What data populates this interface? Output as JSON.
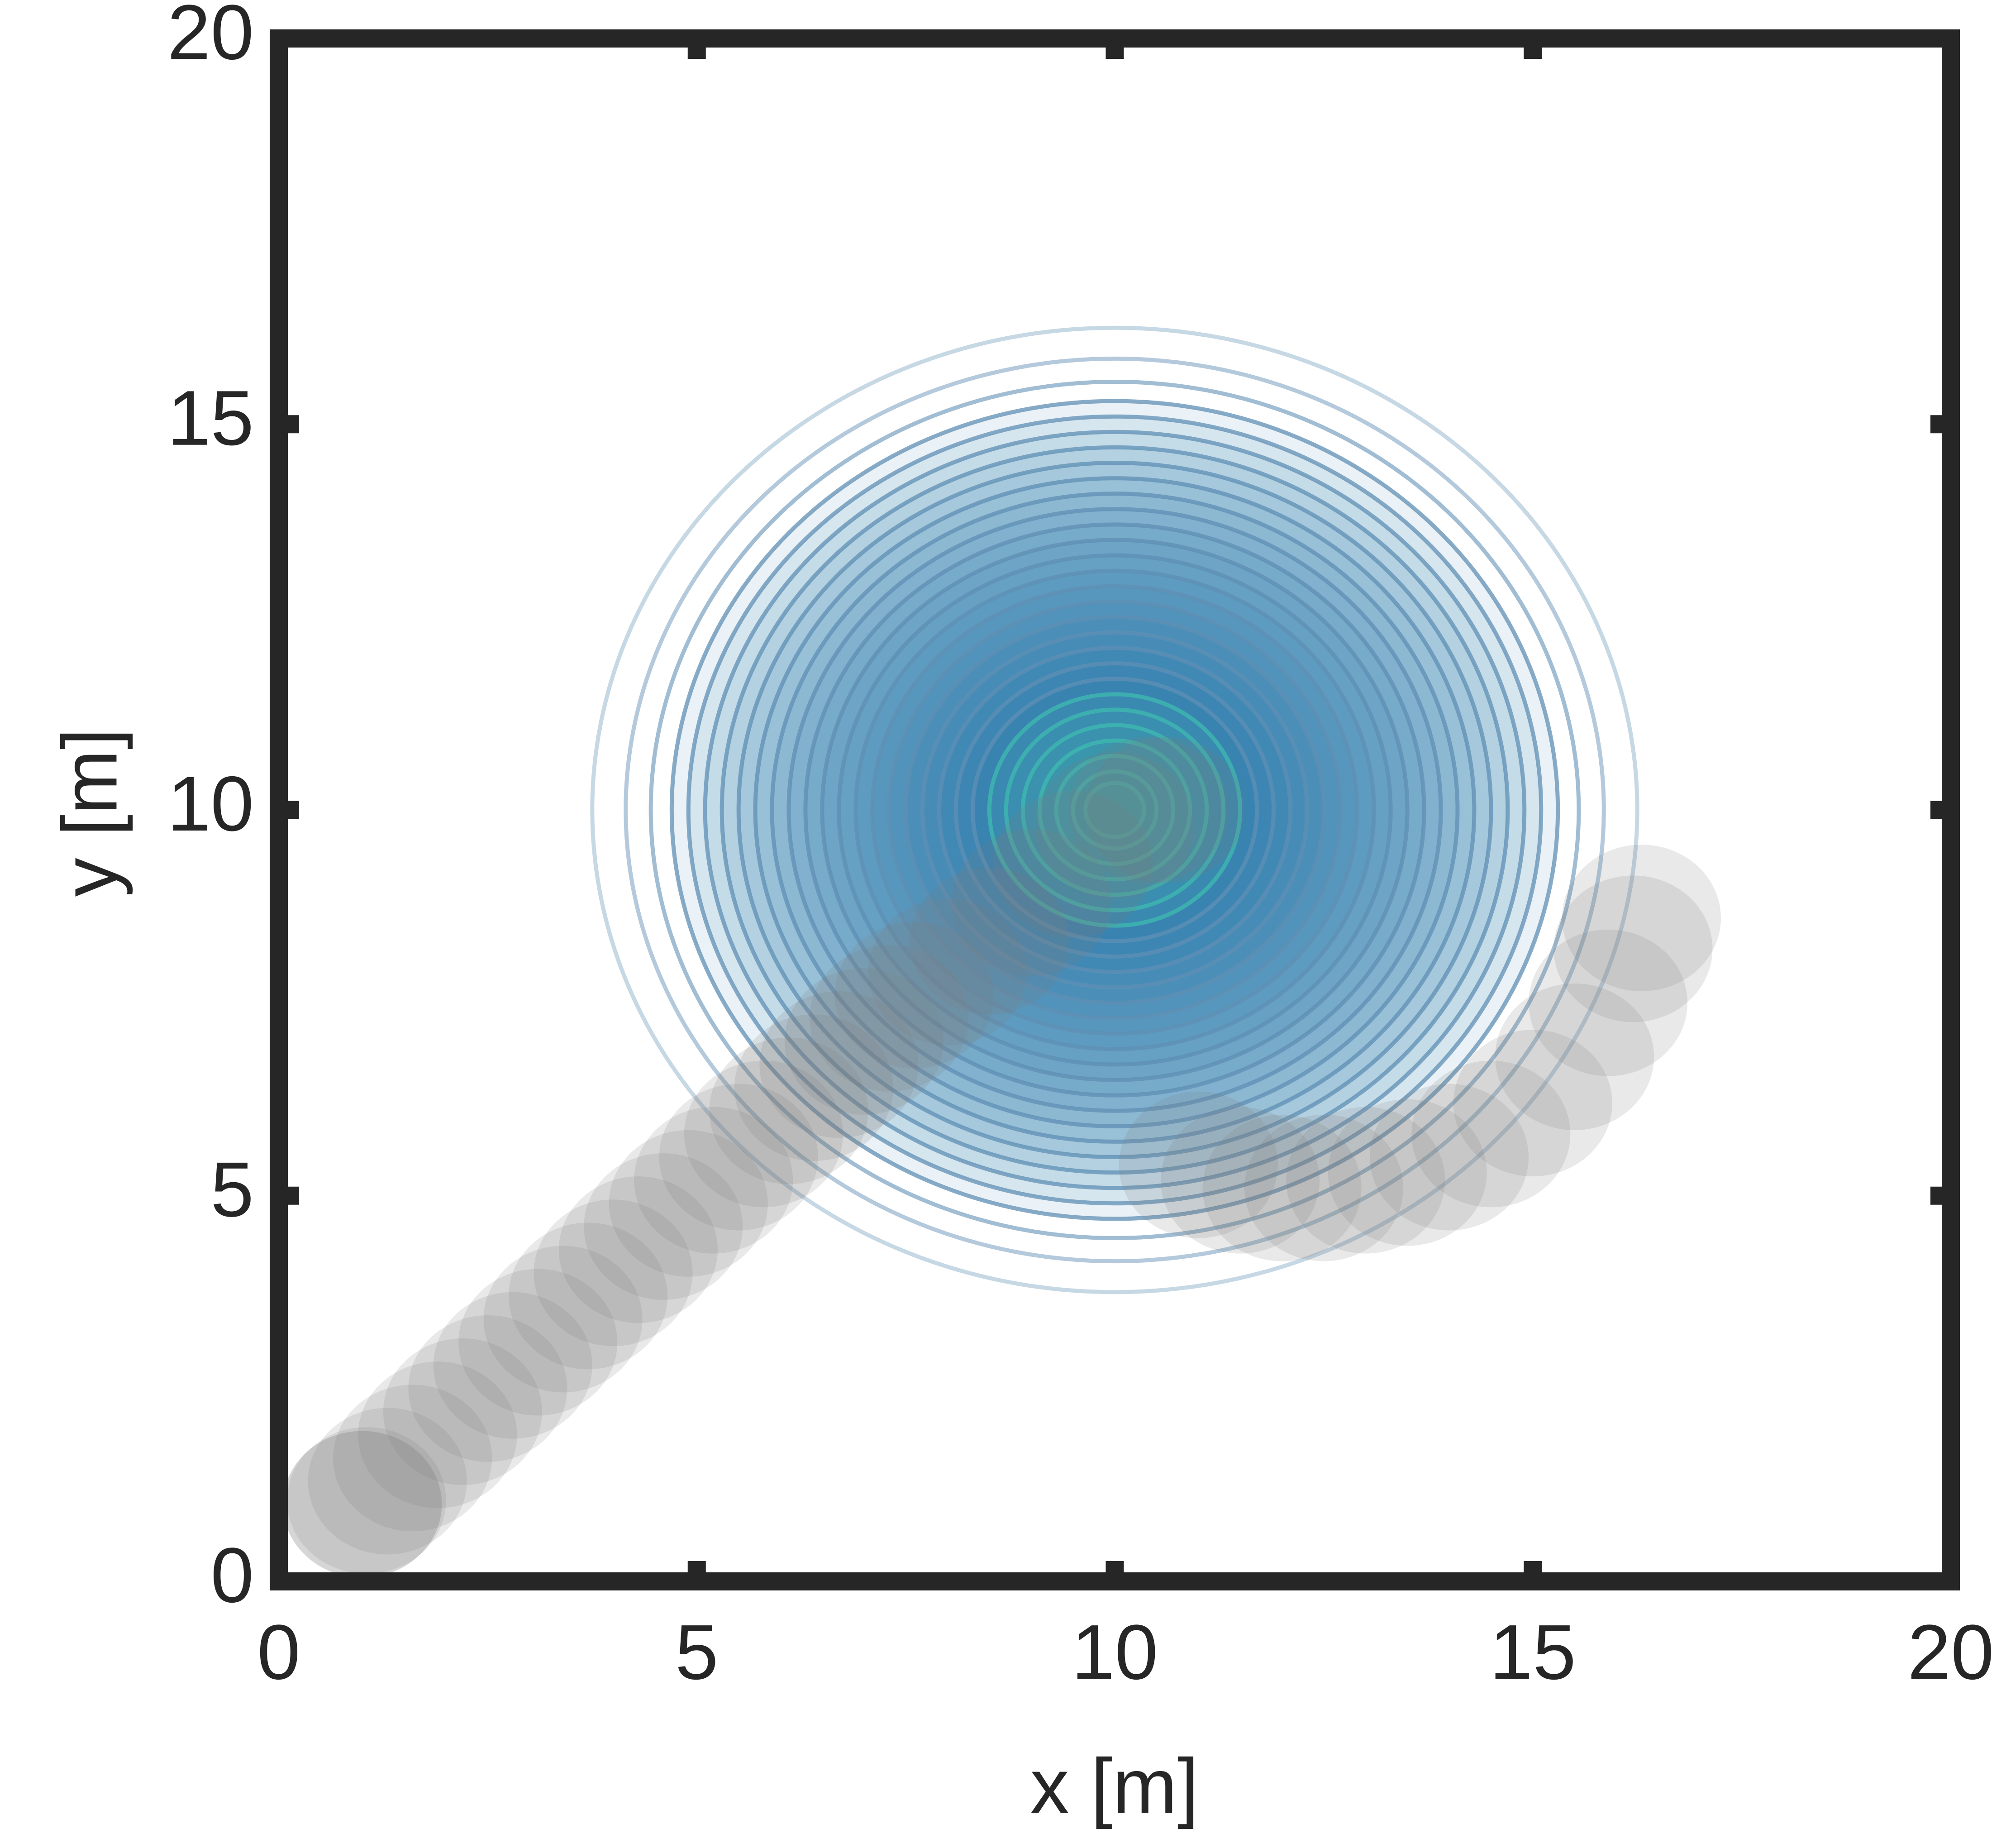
{
  "chart_data": {
    "type": "trajectory",
    "xlabel": "x [m]",
    "ylabel": "y [m]",
    "xlim": [
      0,
      20
    ],
    "ylim": [
      0,
      20
    ],
    "xticks": [
      0,
      5,
      10,
      15,
      20
    ],
    "yticks": [
      0,
      5,
      10,
      15,
      20
    ],
    "contours": {
      "center": [
        10,
        10
      ],
      "levels": [
        6.25,
        5.85,
        5.55,
        5.3,
        5.1,
        4.9,
        4.7,
        4.5,
        4.3,
        4.1,
        3.9,
        3.7,
        3.5,
        3.3,
        3.1,
        2.9,
        2.7,
        2.5,
        2.3,
        2.1,
        1.9,
        1.7
      ],
      "inner_levels": [
        1.5,
        1.3,
        1.1,
        0.9,
        0.7,
        0.5,
        0.35
      ],
      "line_color": "#5f8fb4",
      "fill_color": "#1b6ca6",
      "inner_color": "#3fb8b0"
    },
    "agent": {
      "color": "#7a7a7a",
      "radius": 0.95,
      "x": [
        1,
        1,
        1.05,
        1.3,
        1.6,
        1.9,
        2.2,
        2.5,
        2.8,
        3.1,
        3.4,
        3.7,
        4.0,
        4.3,
        4.6,
        4.9,
        5.2,
        5.5,
        5.8,
        6.1,
        6.4,
        6.7,
        7.0,
        7.3,
        7.6,
        8.0,
        8.5,
        9.0,
        9.5,
        10.0,
        10.4,
        10.6,
        11.0,
        11.5,
        12.0,
        12.5,
        13.0,
        13.5,
        14.0,
        14.5,
        15.0,
        15.5,
        15.9,
        16.2,
        16.3
      ],
      "y": [
        1,
        1,
        1.05,
        1.3,
        1.6,
        1.9,
        2.2,
        2.5,
        2.8,
        3.1,
        3.4,
        3.7,
        4.0,
        4.3,
        4.6,
        4.9,
        5.2,
        5.5,
        5.8,
        6.1,
        6.4,
        6.7,
        7.0,
        7.3,
        7.6,
        7.9,
        8.3,
        8.8,
        9.3,
        9.8,
        10.0,
        10.0,
        5.4,
        5.2,
        5.1,
        5.1,
        5.2,
        5.3,
        5.5,
        5.8,
        6.2,
        6.8,
        7.5,
        8.2,
        8.6
      ]
    }
  }
}
